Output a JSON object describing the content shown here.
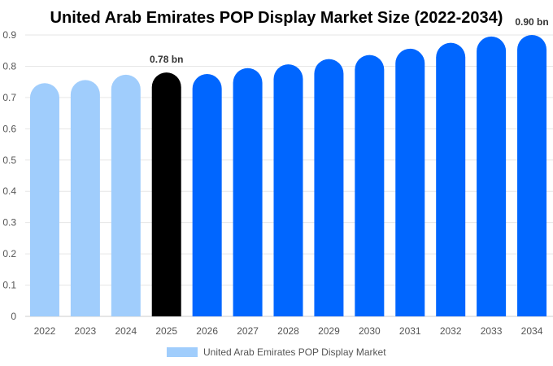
{
  "chart_data": {
    "type": "bar",
    "title": "United Arab Emirates POP Display Market Size (2022-2034)",
    "categories": [
      "2022",
      "2023",
      "2024",
      "2025",
      "2026",
      "2027",
      "2028",
      "2029",
      "2030",
      "2031",
      "2032",
      "2033",
      "2034"
    ],
    "series": [
      {
        "name": "United Arab Emirates POP Display Market",
        "values": [
          0.746,
          0.756,
          0.773,
          0.78,
          0.775,
          0.794,
          0.806,
          0.823,
          0.836,
          0.856,
          0.875,
          0.895,
          0.9
        ]
      }
    ],
    "data_labels": [
      {
        "category": "2025",
        "text": "0.78 bn"
      },
      {
        "category": "2034",
        "text": "0.90 bn"
      }
    ],
    "ylim": [
      0,
      0.9
    ],
    "yticks": [
      "0",
      "0.1",
      "0.2",
      "0.3",
      "0.4",
      "0.5",
      "0.6",
      "0.7",
      "0.8",
      "0.9"
    ],
    "legend_position": "bottom",
    "colors": {
      "historical": "#a0cdfc",
      "base_year": "#000000",
      "forecast": "#0066ff"
    },
    "color_groups": [
      "historical",
      "historical",
      "historical",
      "base_year",
      "forecast",
      "forecast",
      "forecast",
      "forecast",
      "forecast",
      "forecast",
      "forecast",
      "forecast",
      "forecast"
    ]
  }
}
